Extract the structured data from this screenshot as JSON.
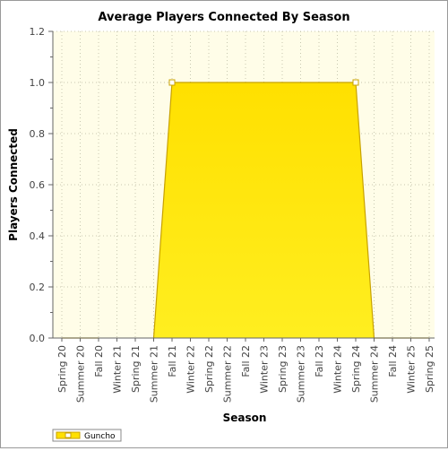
{
  "chart_data": {
    "type": "area",
    "title": "Average Players Connected By Season",
    "xlabel": "Season",
    "ylabel": "Players Connected",
    "categories": [
      "Spring 20",
      "Summer 20",
      "Fall 20",
      "Winter 21",
      "Spring 21",
      "Summer 21",
      "Fall 21",
      "Winter 22",
      "Spring 22",
      "Summer 22",
      "Fall 22",
      "Winter 23",
      "Spring 23",
      "Summer 23",
      "Fall 23",
      "Winter 24",
      "Spring 24",
      "Summer 24",
      "Fall 24",
      "Winter 25",
      "Spring 25"
    ],
    "series": [
      {
        "name": "Guncho",
        "values": [
          0.0,
          0.0,
          0.0,
          null,
          null,
          0.0,
          1.0,
          1.0,
          1.0,
          1.0,
          1.0,
          1.0,
          1.0,
          1.0,
          1.0,
          1.0,
          1.0,
          0.0,
          0.0,
          0.0,
          0.0
        ],
        "markers": [
          false,
          false,
          false,
          false,
          false,
          false,
          true,
          false,
          false,
          false,
          false,
          false,
          false,
          false,
          false,
          false,
          true,
          false,
          false,
          false,
          false
        ]
      }
    ],
    "ylim": [
      0,
      1.2
    ],
    "yticks": [
      "0.0",
      "0.2",
      "0.4",
      "0.6",
      "0.8",
      "1.0",
      "1.2"
    ],
    "grid": true,
    "legend": "bottom-left",
    "colors": {
      "area_fill_top": "#ffe000",
      "area_fill_bottom": "#ffee20",
      "line": "#c8a200",
      "plot_background": "#fffde8",
      "grid": "#c8c8b0"
    }
  }
}
